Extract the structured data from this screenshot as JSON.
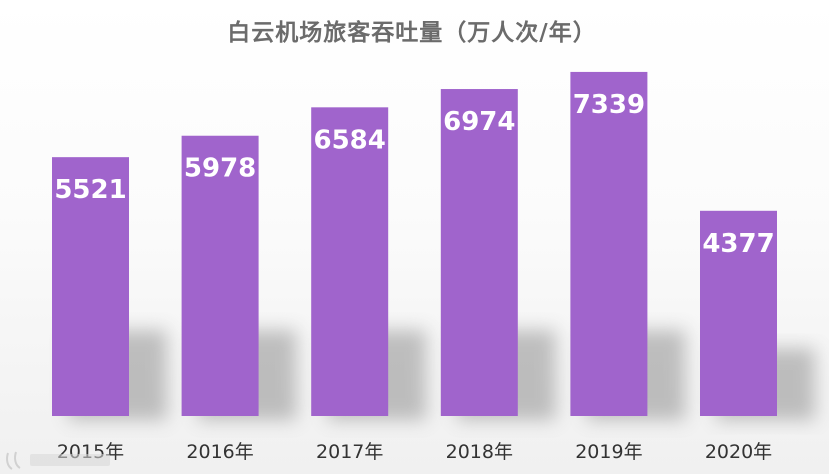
{
  "chart_data": {
    "type": "bar",
    "title": "白云机场旅客吞吐量（万人次/年）",
    "categories": [
      "2015年",
      "2016年",
      "2017年",
      "2018年",
      "2019年",
      "2020年"
    ],
    "values": [
      5521,
      5978,
      6584,
      6974,
      7339,
      4377
    ],
    "xlabel": "",
    "ylabel": "",
    "ylim": [
      0,
      7700
    ],
    "grid": false,
    "legend": "none",
    "colors": {
      "bar": "#a064cc",
      "bar_label": "#ffffff",
      "title": "#6b6b6b",
      "tick_label": "#333333"
    }
  }
}
